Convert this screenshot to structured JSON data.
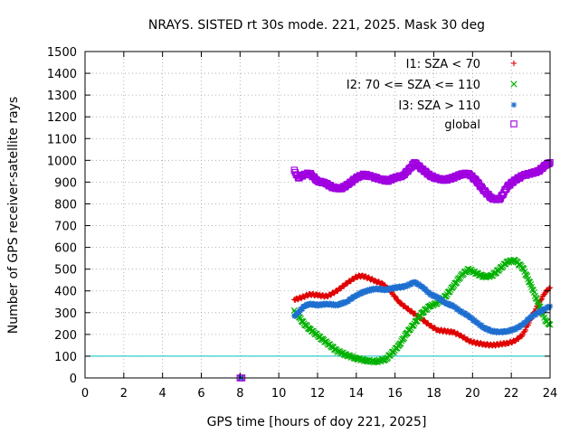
{
  "chart_data": {
    "type": "scatter",
    "title": "NRAYS. SISTED rt 30s mode. 221, 2025. Mask 30 deg",
    "xlabel": "GPS time [hours of doy 221, 2025]",
    "ylabel": "Number of GPS receiver-satellite rays",
    "xlim": [
      0,
      24
    ],
    "ylim": [
      0,
      1500
    ],
    "xticks": [
      0,
      2,
      4,
      6,
      8,
      10,
      12,
      14,
      16,
      18,
      20,
      22,
      24
    ],
    "yticks": [
      0,
      100,
      200,
      300,
      400,
      500,
      600,
      700,
      800,
      900,
      1000,
      1100,
      1200,
      1300,
      1400,
      1500
    ],
    "grid": true,
    "legend_position": "top-right",
    "threshold_line": {
      "y": 100,
      "color": "#00c0c0"
    },
    "series": [
      {
        "name": "I1: SZA < 70",
        "marker": "+",
        "color": "#e00000",
        "x": [
          8.0,
          8.1,
          10.8,
          11.2,
          11.6,
          12.0,
          12.5,
          13.0,
          13.5,
          14.0,
          14.3,
          14.6,
          15.0,
          15.4,
          15.8,
          16.2,
          16.6,
          17.0,
          17.4,
          17.8,
          18.2,
          18.6,
          19.0,
          19.4,
          19.8,
          20.2,
          20.6,
          21.0,
          21.4,
          21.8,
          22.2,
          22.6,
          23.0,
          23.4,
          23.8,
          24.0
        ],
        "y": [
          0,
          0,
          360,
          370,
          385,
          380,
          375,
          400,
          435,
          465,
          470,
          460,
          445,
          430,
          395,
          350,
          320,
          295,
          270,
          240,
          220,
          215,
          210,
          195,
          170,
          160,
          155,
          150,
          155,
          160,
          170,
          200,
          270,
          340,
          400,
          415
        ]
      },
      {
        "name": "I2: 70 <= SZA <= 110",
        "marker": "x",
        "color": "#00b000",
        "x": [
          8.0,
          8.1,
          10.8,
          11.0,
          11.3,
          11.6,
          12.0,
          12.5,
          13.0,
          13.5,
          14.0,
          14.5,
          15.0,
          15.5,
          15.8,
          16.2,
          16.6,
          17.0,
          17.4,
          17.8,
          18.2,
          18.6,
          19.0,
          19.4,
          19.8,
          20.2,
          20.6,
          21.0,
          21.4,
          21.8,
          22.2,
          22.6,
          23.0,
          23.4,
          23.8,
          24.0
        ],
        "y": [
          0,
          0,
          310,
          285,
          250,
          225,
          195,
          160,
          125,
          105,
          90,
          80,
          75,
          85,
          110,
          150,
          205,
          250,
          300,
          330,
          345,
          375,
          420,
          470,
          500,
          480,
          465,
          470,
          500,
          535,
          540,
          505,
          430,
          340,
          260,
          245
        ]
      },
      {
        "name": "I3: SZA > 110",
        "marker": "*",
        "color": "#1e6fd0",
        "x": [
          8.0,
          8.1,
          10.8,
          11.0,
          11.3,
          11.6,
          12.0,
          12.5,
          13.0,
          13.5,
          14.0,
          14.5,
          15.0,
          15.5,
          16.0,
          16.5,
          17.0,
          17.4,
          17.8,
          18.2,
          18.6,
          19.0,
          19.4,
          19.8,
          20.2,
          20.6,
          21.0,
          21.4,
          21.8,
          22.2,
          22.6,
          23.0,
          23.4,
          23.8,
          24.0
        ],
        "y": [
          0,
          0,
          285,
          300,
          330,
          340,
          335,
          340,
          335,
          350,
          380,
          400,
          410,
          405,
          415,
          420,
          440,
          420,
          385,
          370,
          345,
          330,
          305,
          285,
          255,
          230,
          215,
          210,
          215,
          225,
          245,
          280,
          300,
          320,
          330
        ]
      },
      {
        "name": "global",
        "marker": "square",
        "color": "#a000e0",
        "x": [
          8.0,
          8.1,
          10.8,
          11.0,
          11.3,
          11.6,
          12.0,
          12.4,
          12.8,
          13.2,
          13.6,
          14.0,
          14.4,
          14.8,
          15.2,
          15.6,
          16.0,
          16.4,
          16.8,
          17.0,
          17.4,
          17.8,
          18.2,
          18.6,
          19.0,
          19.4,
          19.8,
          20.2,
          20.6,
          21.0,
          21.4,
          21.8,
          22.2,
          22.6,
          23.0,
          23.4,
          23.8,
          24.0
        ],
        "y": [
          0,
          0,
          955,
          920,
          935,
          940,
          905,
          895,
          875,
          870,
          890,
          920,
          935,
          925,
          915,
          905,
          920,
          930,
          965,
          990,
          960,
          930,
          915,
          910,
          920,
          935,
          940,
          905,
          860,
          825,
          820,
          880,
          910,
          930,
          940,
          950,
          980,
          990
        ]
      }
    ]
  }
}
